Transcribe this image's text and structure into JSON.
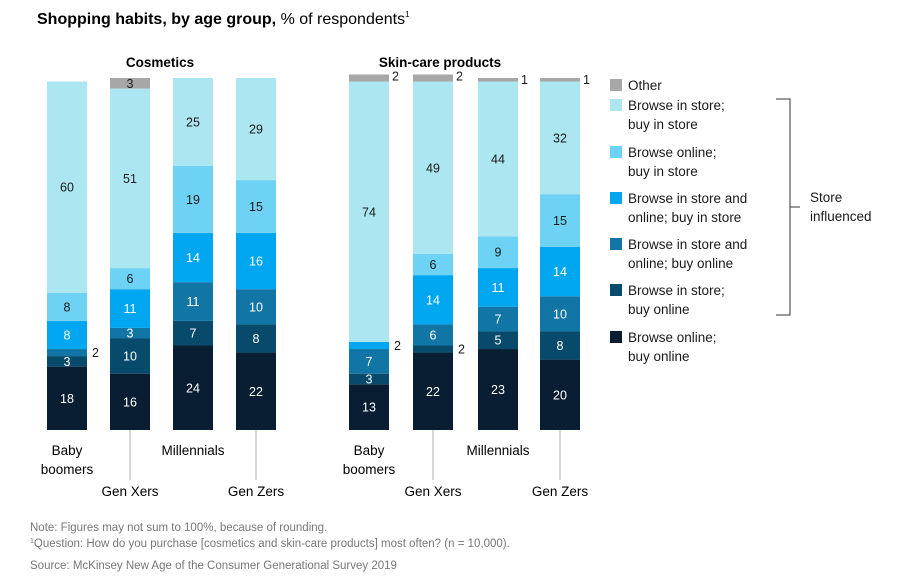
{
  "title_bold": "Shopping habits, by age group,",
  "title_rest": "% of respondents",
  "title_footnote_mark": "1",
  "chart_data": {
    "type": "bar",
    "stacked": true,
    "layers": [
      {
        "name": "Browse online; buy online",
        "color": "#0a1e33"
      },
      {
        "name": "Browse in store; buy online",
        "color": "#084a6b"
      },
      {
        "name": "Browse in store and online; buy online",
        "color": "#1175a5"
      },
      {
        "name": "Browse in store and online; buy in store",
        "color": "#00a6f0"
      },
      {
        "name": "Browse online; buy in store",
        "color": "#6dd2f4"
      },
      {
        "name": "Browse in store; buy in store",
        "color": "#abe6f1"
      },
      {
        "name": "Other",
        "color": "#a7a7a7"
      }
    ],
    "panels": [
      {
        "title": "Cosmetics",
        "categories": [
          "Baby boomers",
          "Gen Xers",
          "Millennials",
          "Gen Zers"
        ],
        "category_label_lines": [
          [
            "Baby",
            "boomers"
          ],
          [
            "Gen Xers"
          ],
          [
            "Millennials"
          ],
          [
            "Gen Zers"
          ]
        ],
        "values": [
          [
            18,
            3,
            2,
            8,
            8,
            60,
            0
          ],
          [
            16,
            10,
            3,
            11,
            6,
            51,
            3
          ],
          [
            24,
            7,
            11,
            14,
            19,
            25,
            0
          ],
          [
            22,
            8,
            10,
            16,
            15,
            29,
            0
          ]
        ]
      },
      {
        "title": "Skin-care products",
        "categories": [
          "Baby boomers",
          "Gen Xers",
          "Millennials",
          "Gen Zers"
        ],
        "category_label_lines": [
          [
            "Baby",
            "boomers"
          ],
          [
            "Gen Xers"
          ],
          [
            "Millennials"
          ],
          [
            "Gen Zers"
          ]
        ],
        "values": [
          [
            13,
            3,
            7,
            2,
            0,
            74,
            2
          ],
          [
            22,
            2,
            6,
            14,
            6,
            49,
            2
          ],
          [
            23,
            5,
            7,
            11,
            9,
            44,
            1
          ],
          [
            20,
            8,
            10,
            14,
            15,
            32,
            1
          ]
        ]
      }
    ],
    "legend": [
      {
        "label_lines": [
          "Other"
        ],
        "color": "#a7a7a7"
      },
      {
        "label_lines": [
          "Browse in store;",
          "buy in store"
        ],
        "color": "#abe6f1"
      },
      {
        "label_lines": [
          "Browse online;",
          "buy in store"
        ],
        "color": "#6dd2f4"
      },
      {
        "label_lines": [
          "Browse in store and",
          "online; buy in store"
        ],
        "color": "#00a6f0"
      },
      {
        "label_lines": [
          "Browse in store and",
          "online; buy online"
        ],
        "color": "#1175a5"
      },
      {
        "label_lines": [
          "Browse in store;",
          "buy online"
        ],
        "color": "#084a6b"
      },
      {
        "label_lines": [
          "Browse online;",
          "buy online"
        ],
        "color": "#0a1e33"
      }
    ],
    "bracket_label_lines": [
      "Store",
      "influenced"
    ]
  },
  "note": "Note: Figures may not sum to 100%, because of rounding.",
  "question_mark": "1",
  "question": "Question: How do you purchase [cosmetics and skin-care products] most often? (n = 10,000).",
  "source": "Source: McKinsey New Age of the Consumer Generational Survey 2019"
}
